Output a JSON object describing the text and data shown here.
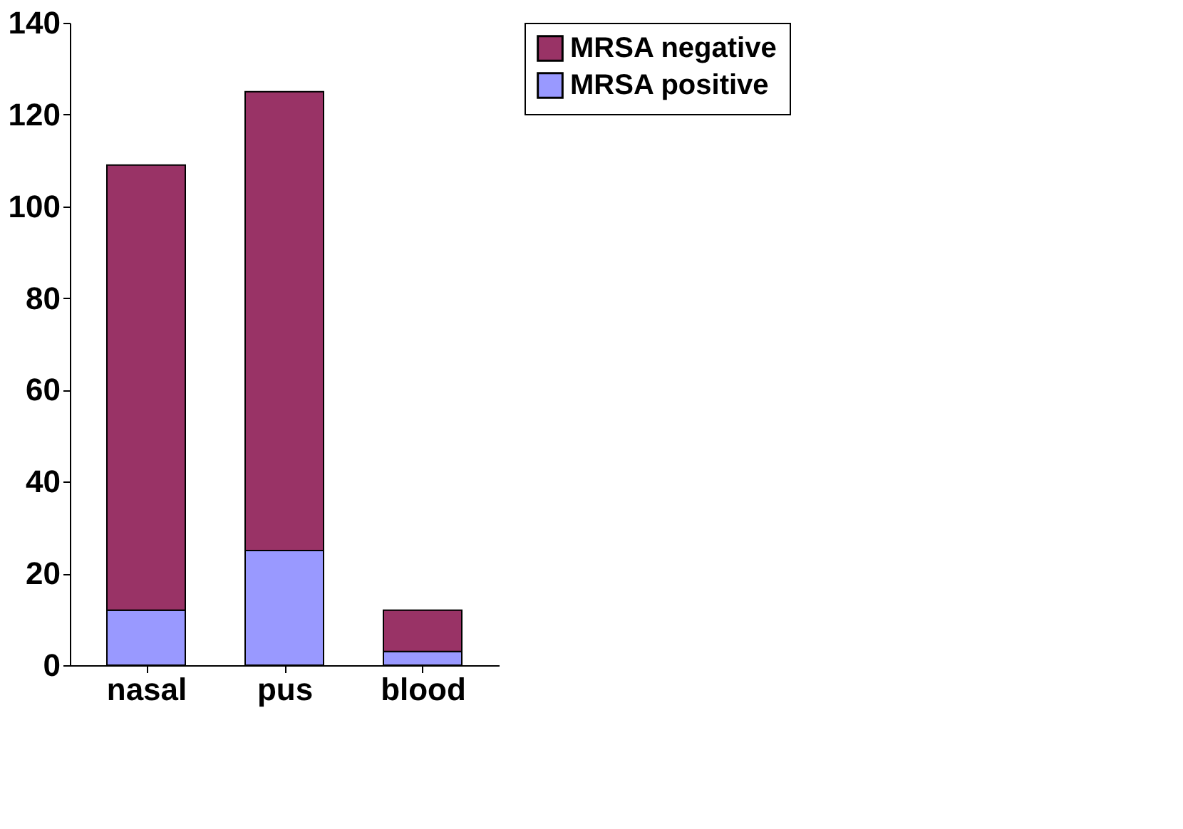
{
  "chart_data": {
    "type": "bar",
    "stacked": true,
    "categories": [
      "nasal",
      "pus",
      "blood"
    ],
    "series": [
      {
        "name": "MRSA positive",
        "color": "#9999ff",
        "values": [
          12,
          25,
          3
        ]
      },
      {
        "name": "MRSA negative",
        "color": "#993366",
        "values": [
          97,
          100,
          9
        ]
      }
    ],
    "ylim": [
      0,
      140
    ],
    "yticks": [
      0,
      20,
      40,
      60,
      80,
      100,
      120,
      140
    ],
    "grid": false,
    "legend": "right"
  }
}
